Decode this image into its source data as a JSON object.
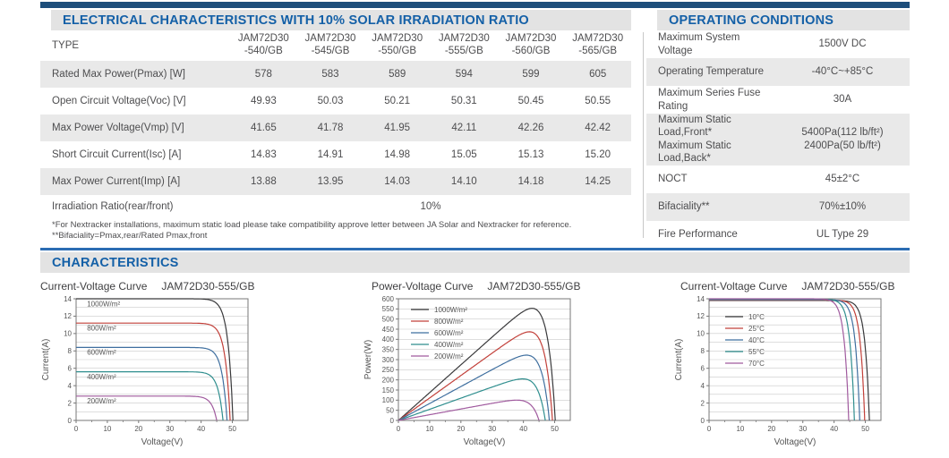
{
  "theme": {
    "top_bar_color": "#1d4e7b",
    "header_text_color": "#1460a7",
    "band_bg": "#e3e3e3",
    "row_shade_bg": "#e9e9e9",
    "rule_blue": "#2b6cb3"
  },
  "electrical": {
    "title": "ELECTRICAL CHARACTERISTICS WITH 10% SOLAR IRRADIATION RATIO",
    "type_label": "TYPE",
    "models": [
      {
        "line1": "JAM72D30",
        "line2": "-540/GB"
      },
      {
        "line1": "JAM72D30",
        "line2": "-545/GB"
      },
      {
        "line1": "JAM72D30",
        "line2": "-550/GB"
      },
      {
        "line1": "JAM72D30",
        "line2": "-555/GB"
      },
      {
        "line1": "JAM72D30",
        "line2": "-560/GB"
      },
      {
        "line1": "JAM72D30",
        "line2": "-565/GB"
      }
    ],
    "rows": [
      {
        "label": "Rated Max Power(Pmax) [W]",
        "values": [
          "578",
          "583",
          "589",
          "594",
          "599",
          "605"
        ],
        "shaded": true
      },
      {
        "label": "Open Circuit Voltage(Voc) [V]",
        "values": [
          "49.93",
          "50.03",
          "50.21",
          "50.31",
          "50.45",
          "50.55"
        ],
        "shaded": false
      },
      {
        "label": "Max Power Voltage(Vmp) [V]",
        "values": [
          "41.65",
          "41.78",
          "41.95",
          "42.11",
          "42.26",
          "42.42"
        ],
        "shaded": true
      },
      {
        "label": "Short Circuit Current(Isc) [A]",
        "values": [
          "14.83",
          "14.91",
          "14.98",
          "15.05",
          "15.13",
          "15.20"
        ],
        "shaded": false
      },
      {
        "label": "Max Power Current(Imp) [A]",
        "values": [
          "13.88",
          "13.95",
          "14.03",
          "14.10",
          "14.18",
          "14.25"
        ],
        "shaded": true
      },
      {
        "label": "Irradiation Ratio(rear/front)",
        "merged": "10%",
        "shaded": false
      }
    ],
    "footnotes": [
      "*For Nextracker installations, maximum static load please take compatibility approve letter between JA Solar and Nextracker for reference.",
      "**Bifaciality=Pmax,rear/Rated Pmax,front"
    ]
  },
  "operating": {
    "title": "OPERATING CONDITIONS",
    "rows": [
      {
        "label_lines": [
          "Maximum System Voltage"
        ],
        "value_lines": [
          "1500V DC"
        ],
        "shaded": false
      },
      {
        "label_lines": [
          "Operating Temperature"
        ],
        "value_lines": [
          "-40°C~+85°C"
        ],
        "shaded": true
      },
      {
        "label_lines": [
          "Maximum Series Fuse Rating"
        ],
        "value_lines": [
          "30A"
        ],
        "shaded": false
      },
      {
        "label_lines": [
          "Maximum Static Load,Front*",
          "Maximum Static Load,Back*"
        ],
        "value_lines": [
          "5400Pa(112 lb/ft²)",
          "2400Pa(50 lb/ft²)"
        ],
        "shaded": true
      },
      {
        "label_lines": [
          "NOCT"
        ],
        "value_lines": [
          "45±2°C"
        ],
        "shaded": false
      },
      {
        "label_lines": [
          "Bifaciality**"
        ],
        "value_lines": [
          "70%±10%"
        ],
        "shaded": true
      },
      {
        "label_lines": [
          "Fire Performance"
        ],
        "value_lines": [
          "UL Type 29"
        ],
        "shaded": false
      }
    ]
  },
  "characteristics": {
    "title": "CHARACTERISTICS"
  },
  "chart_data": [
    {
      "type": "line",
      "title": "Current-Voltage Curve",
      "model": "JAM72D30-555/GB",
      "xlabel": "Voltage(V)",
      "ylabel": "Current(A)",
      "xlim": [
        0,
        55
      ],
      "ylim": [
        0,
        14
      ],
      "x_ticks": [
        0,
        10,
        20,
        30,
        40,
        50
      ],
      "x_minor_step": 5,
      "y_ticks": [
        0,
        2,
        4,
        6,
        8,
        10,
        12,
        14
      ],
      "grid_step": 1,
      "grid": "horizontal",
      "legend_position": "inline-left",
      "curve": "iv",
      "knee": 1.6,
      "labels": "inline",
      "series": [
        {
          "name": "1000W/m²",
          "color": "#39393b",
          "isc": 14.0,
          "voc": 50.2
        },
        {
          "name": "800W/m²",
          "color": "#c2403a",
          "isc": 11.2,
          "voc": 49.3
        },
        {
          "name": "600W/m²",
          "color": "#3f6f9f",
          "isc": 8.4,
          "voc": 48.3
        },
        {
          "name": "400W/m²",
          "color": "#2f8e8e",
          "isc": 5.6,
          "voc": 47.0
        },
        {
          "name": "200W/m²",
          "color": "#a05a9e",
          "isc": 2.8,
          "voc": 45.0
        }
      ]
    },
    {
      "type": "line",
      "title": "Power-Voltage Curve",
      "model": "JAM72D30-555/GB",
      "xlabel": "Voltage(V)",
      "ylabel": "Power(W)",
      "xlim": [
        0,
        55
      ],
      "ylim": [
        0,
        600
      ],
      "x_ticks": [
        0,
        10,
        20,
        30,
        40,
        50
      ],
      "x_minor_step": 5,
      "y_ticks": [
        0,
        50,
        100,
        150,
        200,
        250,
        300,
        350,
        400,
        450,
        500,
        550,
        600
      ],
      "grid_step": 50,
      "grid": "horizontal",
      "legend_position": "top-left",
      "curve": "pv",
      "knee": 2.6,
      "labels": "legend",
      "series": [
        {
          "name": "1000W/m²",
          "color": "#39393b",
          "isc": 14.0,
          "voc": 50.2,
          "pmax": 553
        },
        {
          "name": "800W/m²",
          "color": "#c2403a",
          "isc": 11.2,
          "voc": 49.3,
          "pmax": 437
        },
        {
          "name": "600W/m²",
          "color": "#3f6f9f",
          "isc": 8.4,
          "voc": 48.3,
          "pmax": 322
        },
        {
          "name": "400W/m²",
          "color": "#2f8e8e",
          "isc": 5.6,
          "voc": 47.0,
          "pmax": 205
        },
        {
          "name": "200W/m²",
          "color": "#a05a9e",
          "isc": 2.8,
          "voc": 45.0,
          "pmax": 100
        }
      ]
    },
    {
      "type": "line",
      "title": "Current-Voltage Curve",
      "model": "JAM72D30-555/GB",
      "xlabel": "Voltage(V)",
      "ylabel": "Current(A)",
      "xlim": [
        0,
        55
      ],
      "ylim": [
        0,
        14
      ],
      "x_ticks": [
        0,
        10,
        20,
        30,
        40,
        50
      ],
      "x_minor_step": 5,
      "y_ticks": [
        0,
        2,
        4,
        6,
        8,
        10,
        12,
        14
      ],
      "grid_step": 1,
      "grid": "horizontal",
      "legend_position": "top-left",
      "curve": "iv",
      "knee": 1.4,
      "labels": "legend-low",
      "series": [
        {
          "name": "10°C",
          "color": "#39393b",
          "isc": 13.8,
          "voc": 51.3
        },
        {
          "name": "25°C",
          "color": "#c2403a",
          "isc": 13.85,
          "voc": 49.8
        },
        {
          "name": "40°C",
          "color": "#3f6f9f",
          "isc": 13.9,
          "voc": 48.2
        },
        {
          "name": "55°C",
          "color": "#2f8e8e",
          "isc": 13.95,
          "voc": 46.5
        },
        {
          "name": "70°C",
          "color": "#a05a9e",
          "isc": 14.0,
          "voc": 44.7
        }
      ]
    }
  ]
}
